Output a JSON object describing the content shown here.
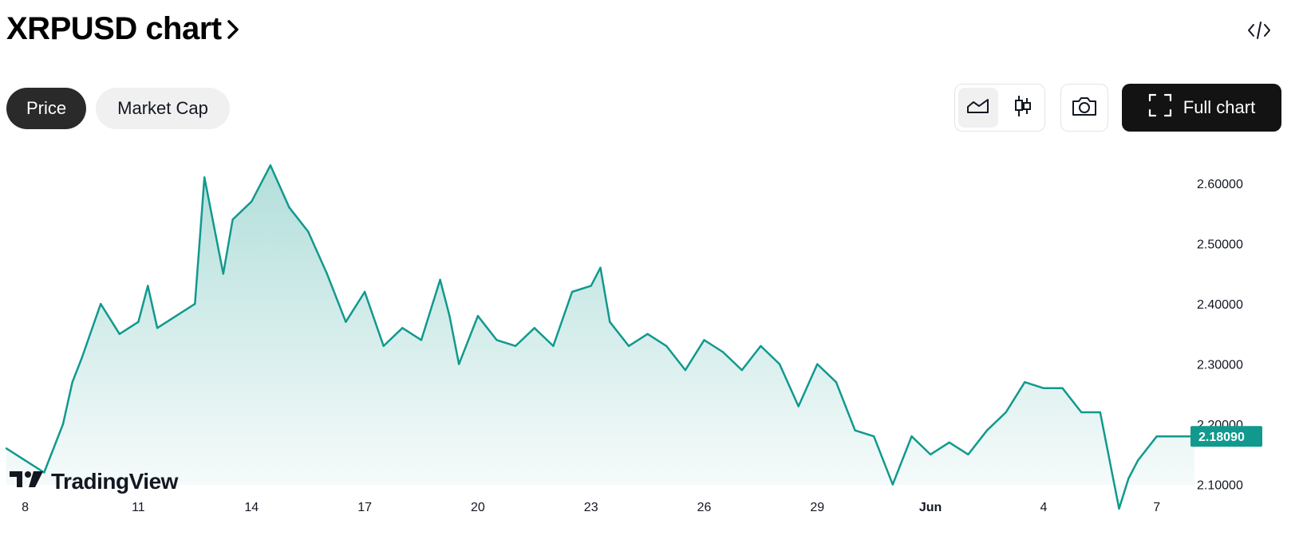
{
  "header": {
    "title": "XRPUSD chart",
    "chevron": "›",
    "embed_icon": "code-embed-icon"
  },
  "tabs": [
    {
      "label": "Price",
      "active": true
    },
    {
      "label": "Market Cap",
      "active": false
    }
  ],
  "toolbar": {
    "chart_style_options": [
      {
        "icon": "area-chart-icon",
        "selected": true
      },
      {
        "icon": "candlestick-icon",
        "selected": false
      }
    ],
    "snapshot_icon": "camera-icon",
    "full_chart_icon": "fullscreen-icon",
    "full_chart_label": "Full chart"
  },
  "branding": {
    "logo_text": "TradingView",
    "logo_icon": "tradingview-logo-icon"
  },
  "colors": {
    "line": "#11998e",
    "price_label_bg": "#11998e",
    "accent_dark": "#131313"
  },
  "chart_data": {
    "type": "area",
    "symbol": "XRPUSD",
    "x_tick_labels": [
      "8",
      "11",
      "14",
      "17",
      "20",
      "23",
      "26",
      "29",
      "Jun",
      "4",
      "7"
    ],
    "y_tick_labels": [
      "2.60000",
      "2.50000",
      "2.40000",
      "2.30000",
      "2.20000",
      "2.10000"
    ],
    "ylim": [
      2.06,
      2.63
    ],
    "last_price_label": "2.18090",
    "grid": false,
    "series": [
      {
        "x": [
          "May 7 12:00",
          "May 8 00:00",
          "May 8 12:00",
          "May 9 00:00",
          "May 9 06:00",
          "May 9 12:00",
          "May 10 00:00",
          "May 10 12:00",
          "May 11 00:00",
          "May 11 06:00",
          "May 11 12:00",
          "May 12 00:00",
          "May 12 12:00",
          "May 12 18:00",
          "May 13 00:00",
          "May 13 06:00",
          "May 13 12:00",
          "May 14 00:00",
          "May 14 12:00",
          "May 15 00:00",
          "May 15 12:00",
          "May 16 00:00",
          "May 16 12:00",
          "May 17 00:00",
          "May 17 12:00",
          "May 18 00:00",
          "May 18 12:00",
          "May 19 00:00",
          "May 19 06:00",
          "May 19 12:00",
          "May 20 00:00",
          "May 20 12:00",
          "May 21 00:00",
          "May 21 12:00",
          "May 22 00:00",
          "May 22 12:00",
          "May 23 00:00",
          "May 23 06:00",
          "May 23 12:00",
          "May 24 00:00",
          "May 24 12:00",
          "May 25 00:00",
          "May 25 12:00",
          "May 26 00:00",
          "May 26 12:00",
          "May 27 00:00",
          "May 27 12:00",
          "May 28 00:00",
          "May 28 12:00",
          "May 29 00:00",
          "May 29 12:00",
          "May 30 00:00",
          "May 30 12:00",
          "May 31 00:00",
          "May 31 12:00",
          "Jun 1 00:00",
          "Jun 1 12:00",
          "Jun 2 00:00",
          "Jun 2 12:00",
          "Jun 3 00:00",
          "Jun 3 12:00",
          "Jun 4 00:00",
          "Jun 4 12:00",
          "Jun 5 00:00",
          "Jun 5 12:00",
          "Jun 6 00:00",
          "Jun 6 06:00",
          "Jun 6 12:00",
          "Jun 7 00:00",
          "Jun 7 12:00",
          "Jun 8 00:00"
        ],
        "y": [
          2.16,
          2.14,
          2.12,
          2.2,
          2.27,
          2.31,
          2.4,
          2.35,
          2.37,
          2.43,
          2.36,
          2.38,
          2.4,
          2.61,
          2.53,
          2.45,
          2.54,
          2.57,
          2.63,
          2.56,
          2.52,
          2.45,
          2.37,
          2.42,
          2.33,
          2.36,
          2.34,
          2.44,
          2.38,
          2.3,
          2.38,
          2.34,
          2.33,
          2.36,
          2.33,
          2.42,
          2.43,
          2.46,
          2.37,
          2.33,
          2.35,
          2.33,
          2.29,
          2.34,
          2.32,
          2.29,
          2.33,
          2.3,
          2.23,
          2.3,
          2.27,
          2.19,
          2.18,
          2.1,
          2.18,
          2.15,
          2.17,
          2.15,
          2.19,
          2.22,
          2.27,
          2.26,
          2.26,
          2.22,
          2.22,
          2.06,
          2.11,
          2.14,
          2.18,
          2.18,
          2.18
        ]
      }
    ]
  }
}
